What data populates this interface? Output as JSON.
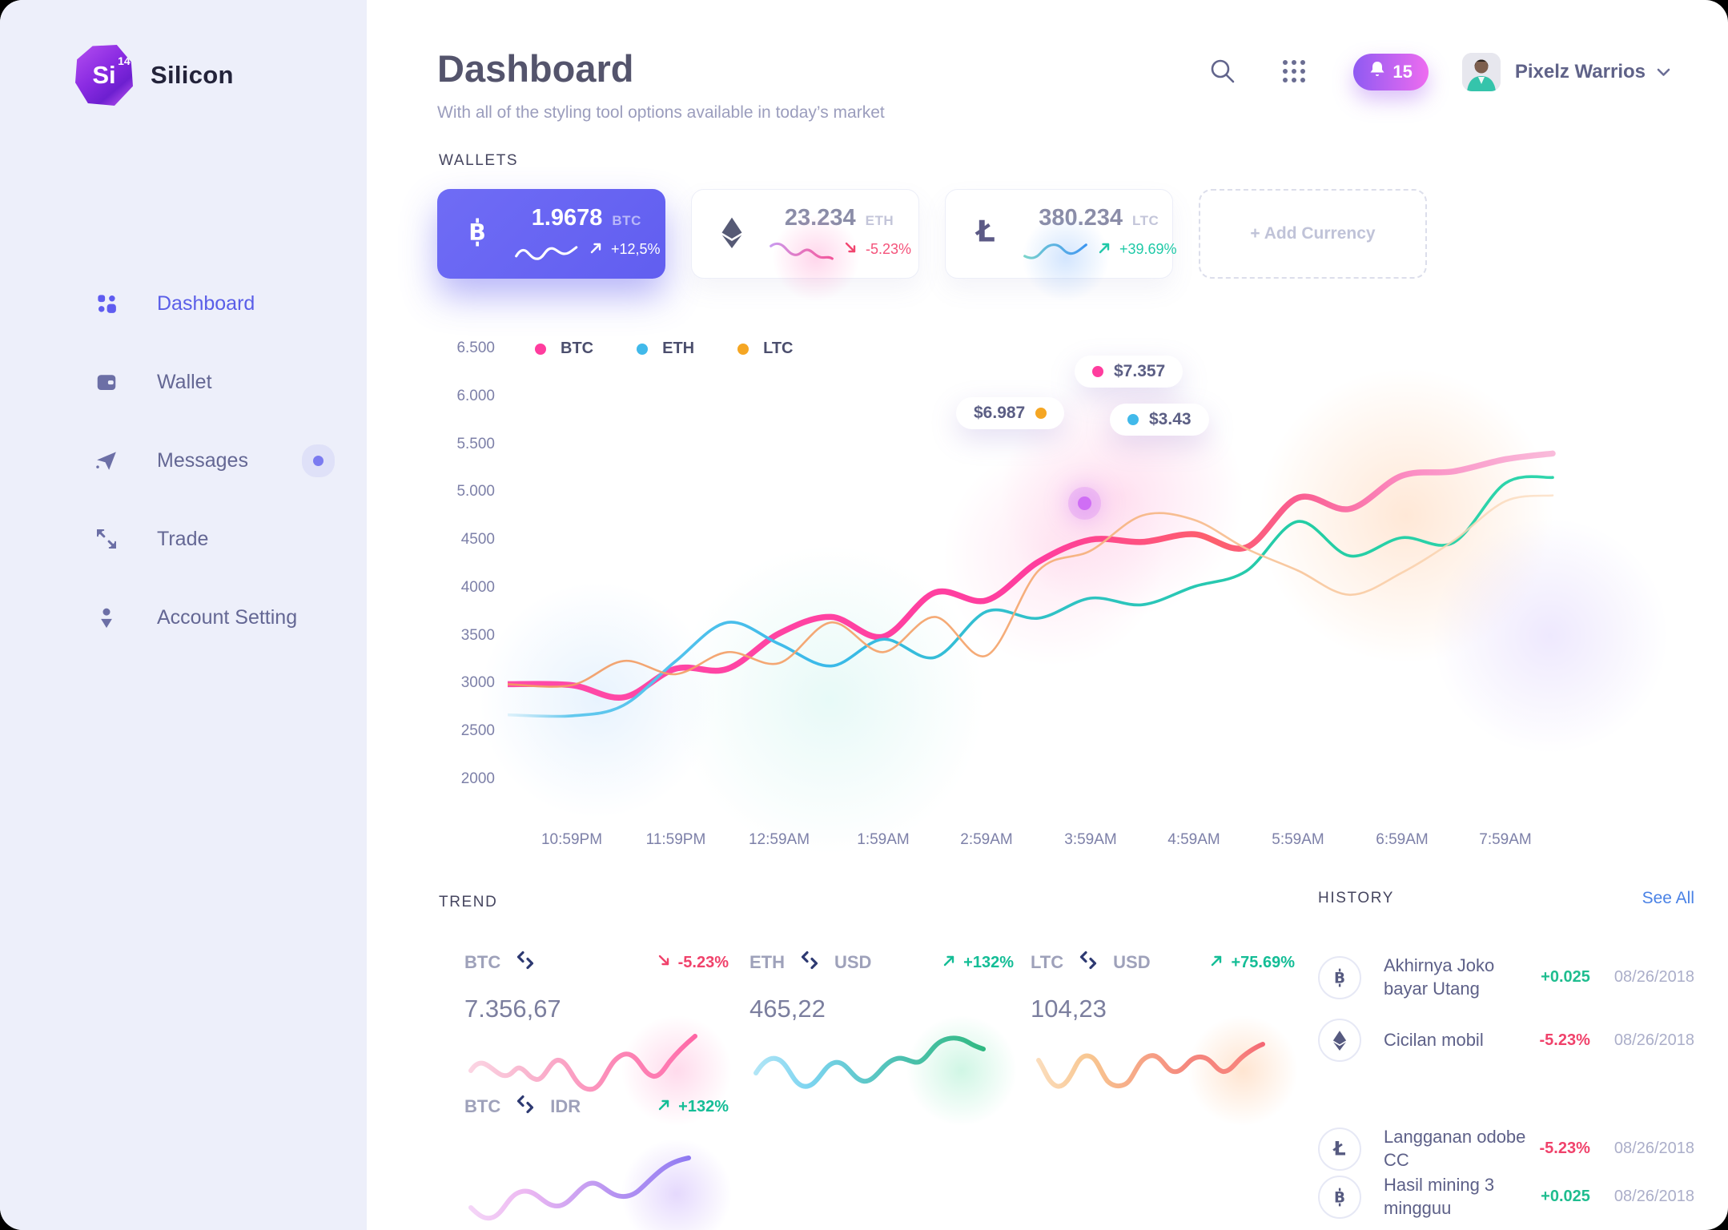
{
  "brand": {
    "name": "Silicon",
    "logo_text": "Si",
    "logo_sup": "14"
  },
  "header": {
    "title": "Dashboard",
    "subtitle": "With all of the styling tool options available in today’s market",
    "notification_count": "15",
    "user_name": "Pixelz Warrios"
  },
  "sidebar": {
    "items": [
      {
        "label": "Dashboard",
        "icon": "dashboard-icon",
        "active": true,
        "badge_dot": false
      },
      {
        "label": "Wallet",
        "icon": "wallet-icon",
        "active": false,
        "badge_dot": false
      },
      {
        "label": "Messages",
        "icon": "send-icon",
        "active": false,
        "badge_dot": true
      },
      {
        "label": "Trade",
        "icon": "trade-icon",
        "active": false,
        "badge_dot": false
      },
      {
        "label": "Account Setting",
        "icon": "user-icon",
        "active": false,
        "badge_dot": false
      }
    ]
  },
  "wallets": {
    "label": "WALLETS",
    "add_label": "+ Add Currency",
    "cards": [
      {
        "currency": "BTC",
        "amount": "1.9678",
        "change": "+12,5%",
        "direction": "up",
        "style": "primary"
      },
      {
        "currency": "ETH",
        "amount": "23.234",
        "change": "-5.23%",
        "direction": "down",
        "style": "plain"
      },
      {
        "currency": "LTC",
        "amount": "380.234",
        "change": "+39.69%",
        "direction": "up",
        "style": "plain"
      }
    ]
  },
  "chart_data": {
    "type": "line",
    "x_categories": [
      "10:59PM",
      "11:59PM",
      "12:59AM",
      "1:59AM",
      "2:59AM",
      "3:59AM",
      "4:59AM",
      "5:59AM",
      "6:59AM",
      "7:59AM"
    ],
    "y_ticks": [
      "6.500",
      "6.000",
      "5.500",
      "5.000",
      "4500",
      "4000",
      "3500",
      "3000",
      "2500",
      "2000"
    ],
    "ylim": [
      2000,
      6500
    ],
    "grid": false,
    "legend_position": "top-left",
    "points_per_interval": 2,
    "series": [
      {
        "name": "BTC",
        "legend_color": "#ff3d9e",
        "values": [
          2990,
          2863,
          3162,
          3160,
          3531,
          3703,
          3496,
          3957,
          3876,
          4279,
          4509,
          4486,
          4567,
          4428,
          4947,
          4831,
          5177,
          5223,
          5350
        ]
      },
      {
        "name": "ETH",
        "legend_color": "#41b9ea",
        "values": [
          2670,
          2780,
          3240,
          3645,
          3420,
          3190,
          3470,
          3280,
          3760,
          3690,
          3899,
          3830,
          4020,
          4180,
          4700,
          4340,
          4530,
          4480,
          5100
        ]
      },
      {
        "name": "LTC",
        "legend_color": "#f5a623",
        "values": [
          2990,
          3243,
          3105,
          3335,
          3220,
          3645,
          3335,
          3703,
          3300,
          4187,
          4394,
          4763,
          4717,
          4417,
          4187,
          3934,
          4164,
          4500,
          4912
        ]
      }
    ],
    "tooltips": [
      {
        "text": "$7.357",
        "series": "BTC",
        "color": "#ff3d9e",
        "dot_side": "left"
      },
      {
        "text": "$6.987",
        "series": "LTC",
        "color": "#f5a623",
        "dot_side": "right"
      },
      {
        "text": "$3.43",
        "series": "ETH",
        "color": "#41b9ea",
        "dot_side": "left"
      }
    ]
  },
  "trend": {
    "label": "TREND",
    "cards": [
      {
        "base": "BTC",
        "quote": "",
        "change": "-5.23%",
        "direction": "down",
        "value": "7.356,67",
        "spark": "pink"
      },
      {
        "base": "ETH",
        "quote": "USD",
        "change": "+132%",
        "direction": "up",
        "value": "465,22",
        "spark": "teal"
      },
      {
        "base": "LTC",
        "quote": "USD",
        "change": "+75.69%",
        "direction": "up",
        "value": "104,23",
        "spark": "orange"
      },
      {
        "base": "BTC",
        "quote": "IDR",
        "change": "+132%",
        "direction": "up",
        "value": "",
        "spark": "purple"
      }
    ]
  },
  "history": {
    "label": "HISTORY",
    "see_all": "See All",
    "rows": [
      {
        "icon": "btc",
        "name": "Akhirnya Joko bayar Utang",
        "amount": "+0.025",
        "direction": "up",
        "date": "08/26/2018"
      },
      {
        "icon": "eth",
        "name": "Cicilan mobil",
        "amount": "-5.23%",
        "direction": "down",
        "date": "08/26/2018"
      },
      {
        "icon": "ltc",
        "name": "Langganan odobe CC",
        "amount": "-5.23%",
        "direction": "down",
        "date": "08/26/2018"
      },
      {
        "icon": "btc",
        "name": "Hasil mining 3 mingguu",
        "amount": "+0.025",
        "direction": "up",
        "date": "08/26/2018"
      }
    ]
  },
  "colors": {
    "primary": "#625ef0",
    "accent_pink": "#ff3d9e",
    "accent_blue": "#41b9ea",
    "accent_orange": "#f5a623",
    "positive": "#1fc9a7",
    "negative": "#f0426b",
    "sidebar_bg": "#edeffa",
    "link_blue": "#4a82e6"
  }
}
